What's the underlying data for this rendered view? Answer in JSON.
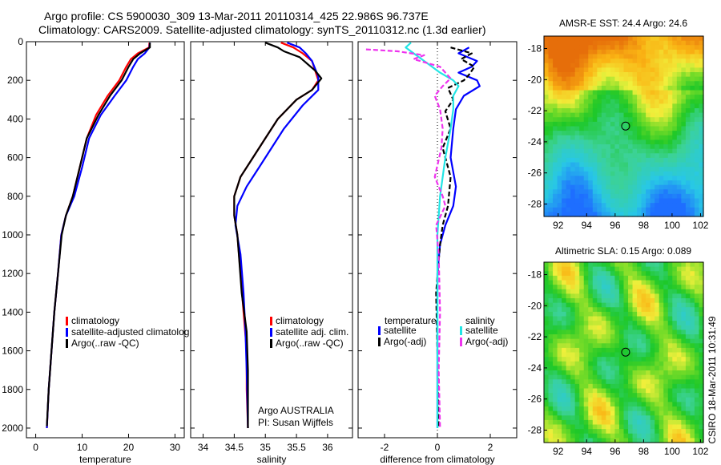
{
  "header": {
    "line1": "Argo profile: CS 5900030_309 13-Mar-2011 20110314_425 22.986S 96.737E",
    "line2": "Climatology: CARS2009. Satellite-adjusted climatology: synTS_20110312.nc (1.3d earlier)"
  },
  "side_label": "CSIRO 18-Mar-2011 10:31:49",
  "colors": {
    "climatology": "#ff0000",
    "satellite": "#0000ff",
    "argo": "#000000",
    "salinity_satellite": "#22e5e5",
    "salinity_argo": "#ee33ee"
  },
  "chart_data": [
    {
      "type": "line",
      "id": "temperature",
      "xlabel": "temperature",
      "ylabel": "",
      "xlim": [
        -2,
        32
      ],
      "ylim": [
        2050,
        0
      ],
      "xticks": [
        0,
        10,
        20,
        30
      ],
      "yticks": [
        0,
        200,
        400,
        600,
        800,
        1000,
        1200,
        1400,
        1600,
        1800,
        2000
      ],
      "legend": [
        "climatology",
        "satellite-adjusted climatology",
        "Argo(..raw -QC)"
      ],
      "legend_display": [
        "climatology",
        "satellite-adjusted climatolog",
        "Argo(..raw -QC)"
      ],
      "series": [
        {
          "name": "climatology",
          "color": "#ff0000",
          "points": [
            [
              24.5,
              5
            ],
            [
              24.4,
              30
            ],
            [
              22.0,
              60
            ],
            [
              20.5,
              90
            ],
            [
              19.5,
              130
            ],
            [
              18.0,
              200
            ],
            [
              15.5,
              280
            ],
            [
              13.0,
              380
            ],
            [
              11.0,
              500
            ],
            [
              9.5,
              650
            ],
            [
              8.0,
              800
            ],
            [
              6.5,
              900
            ],
            [
              5.5,
              1000
            ],
            [
              4.8,
              1200
            ],
            [
              4.0,
              1400
            ],
            [
              3.4,
              1600
            ],
            [
              2.8,
              1800
            ],
            [
              2.4,
              2000
            ]
          ]
        },
        {
          "name": "satellite-adjusted climatology",
          "color": "#0000ff",
          "points": [
            [
              24.6,
              5
            ],
            [
              24.5,
              30
            ],
            [
              23.5,
              60
            ],
            [
              22.0,
              90
            ],
            [
              21.0,
              130
            ],
            [
              19.5,
              200
            ],
            [
              17.0,
              280
            ],
            [
              14.0,
              380
            ],
            [
              11.5,
              500
            ],
            [
              10.0,
              650
            ],
            [
              8.3,
              800
            ],
            [
              6.5,
              900
            ],
            [
              5.5,
              1000
            ],
            [
              4.8,
              1200
            ],
            [
              4.0,
              1400
            ],
            [
              3.4,
              1600
            ],
            [
              2.8,
              1800
            ],
            [
              2.4,
              2000
            ]
          ]
        },
        {
          "name": "Argo(..raw -QC)",
          "color": "#000000",
          "points": [
            [
              24.6,
              5
            ],
            [
              24.6,
              30
            ],
            [
              22.5,
              60
            ],
            [
              21.0,
              90
            ],
            [
              20.0,
              130
            ],
            [
              18.5,
              200
            ],
            [
              16.0,
              280
            ],
            [
              13.5,
              380
            ],
            [
              11.0,
              500
            ],
            [
              9.5,
              650
            ],
            [
              8.0,
              800
            ],
            [
              6.5,
              900
            ],
            [
              5.6,
              1000
            ],
            [
              4.8,
              1200
            ],
            [
              4.0,
              1400
            ],
            [
              3.4,
              1600
            ],
            [
              2.8,
              1800
            ],
            [
              2.4,
              1990
            ]
          ]
        }
      ]
    },
    {
      "type": "line",
      "id": "salinity",
      "xlabel": "salinity",
      "xlim": [
        33.8,
        36.4
      ],
      "ylim": [
        2050,
        0
      ],
      "xticks": [
        34,
        34.5,
        35,
        35.5,
        36
      ],
      "xticklabels": [
        "34",
        "34.5",
        "35",
        "35.5",
        "36"
      ],
      "legend": [
        "climatology",
        "satellite adj. clim.",
        "Argo(..raw -QC)"
      ],
      "note_lines": [
        "Argo AUSTRALIA",
        "PI: Susan Wijffels"
      ],
      "series": [
        {
          "name": "climatology",
          "color": "#ff0000",
          "points": [
            [
              35.25,
              5
            ],
            [
              35.45,
              30
            ],
            [
              35.6,
              60
            ],
            [
              35.75,
              100
            ],
            [
              35.85,
              200
            ],
            [
              35.75,
              250
            ],
            [
              35.5,
              300
            ],
            [
              35.2,
              400
            ],
            [
              35.0,
              500
            ],
            [
              34.8,
              600
            ],
            [
              34.6,
              700
            ],
            [
              34.5,
              800
            ],
            [
              34.5,
              900
            ],
            [
              34.55,
              1000
            ],
            [
              34.6,
              1200
            ],
            [
              34.65,
              1400
            ],
            [
              34.7,
              1600
            ],
            [
              34.7,
              1800
            ],
            [
              34.72,
              2000
            ]
          ]
        },
        {
          "name": "satellite adj. clim.",
          "color": "#0000ff",
          "points": [
            [
              35.35,
              5
            ],
            [
              35.55,
              30
            ],
            [
              35.65,
              60
            ],
            [
              35.75,
              100
            ],
            [
              35.85,
              180
            ],
            [
              35.85,
              250
            ],
            [
              35.6,
              330
            ],
            [
              35.3,
              450
            ],
            [
              35.1,
              550
            ],
            [
              34.9,
              650
            ],
            [
              34.7,
              750
            ],
            [
              34.55,
              850
            ],
            [
              34.52,
              950
            ],
            [
              34.6,
              1100
            ],
            [
              34.65,
              1300
            ],
            [
              34.68,
              1500
            ],
            [
              34.7,
              1700
            ],
            [
              34.72,
              2000
            ]
          ]
        },
        {
          "name": "Argo(..raw -QC)",
          "color": "#000000",
          "points": [
            [
              35.0,
              5
            ],
            [
              35.2,
              30
            ],
            [
              35.3,
              50
            ],
            [
              35.55,
              80
            ],
            [
              35.8,
              150
            ],
            [
              35.9,
              190
            ],
            [
              35.75,
              250
            ],
            [
              35.5,
              300
            ],
            [
              35.2,
              400
            ],
            [
              35.0,
              500
            ],
            [
              34.8,
              600
            ],
            [
              34.6,
              700
            ],
            [
              34.5,
              800
            ],
            [
              34.5,
              900
            ],
            [
              34.55,
              1000
            ],
            [
              34.62,
              1300
            ],
            [
              34.7,
              1500
            ],
            [
              34.72,
              1700
            ],
            [
              34.72,
              2000
            ]
          ]
        }
      ]
    },
    {
      "type": "line",
      "id": "difference",
      "xlabel": "difference from climatology",
      "xlim": [
        -3,
        3
      ],
      "ylim": [
        2050,
        0
      ],
      "xticks": [
        -2,
        0,
        2
      ],
      "legend_temperature_title": "temperature",
      "legend_salinity_title": "salinity",
      "legend": [
        "satellite",
        "Argo(-adj)",
        "satellite",
        "Argo(-adj)"
      ],
      "series": [
        {
          "name": "temperature satellite",
          "color": "#0000ff",
          "points": [
            [
              1.2,
              30
            ],
            [
              0.8,
              60
            ],
            [
              1.5,
              100
            ],
            [
              1.3,
              130
            ],
            [
              0.8,
              160
            ],
            [
              1.5,
              200
            ],
            [
              1.6,
              230
            ],
            [
              1.0,
              280
            ],
            [
              0.7,
              350
            ],
            [
              0.6,
              450
            ],
            [
              0.5,
              600
            ],
            [
              0.7,
              750
            ],
            [
              0.6,
              850
            ],
            [
              0.3,
              950
            ],
            [
              0.1,
              1050
            ],
            [
              0,
              1200
            ],
            [
              0,
              1500
            ],
            [
              0,
              2000
            ]
          ]
        },
        {
          "name": "temperature Argo(-adj)",
          "color": "#000000",
          "points": [
            [
              0.5,
              30
            ],
            [
              1.3,
              60
            ],
            [
              0.9,
              90
            ],
            [
              1.4,
              130
            ],
            [
              1.2,
              170
            ],
            [
              1.0,
              200
            ],
            [
              0.4,
              240
            ],
            [
              0.6,
              300
            ],
            [
              0.3,
              360
            ],
            [
              0.5,
              450
            ],
            [
              0.2,
              550
            ],
            [
              0.5,
              700
            ],
            [
              0.4,
              850
            ],
            [
              0.2,
              950
            ],
            [
              0.1,
              1050
            ],
            [
              -0.05,
              1300
            ],
            [
              0,
              1600
            ],
            [
              0.05,
              2000
            ]
          ]
        },
        {
          "name": "salinity satellite",
          "color": "#22e5e5",
          "points": [
            [
              -1.0,
              5
            ],
            [
              -1.2,
              30
            ],
            [
              -0.8,
              70
            ],
            [
              -0.3,
              120
            ],
            [
              0.1,
              160
            ],
            [
              0.6,
              200
            ],
            [
              0.8,
              230
            ],
            [
              0.6,
              280
            ],
            [
              0.6,
              350
            ],
            [
              0.5,
              450
            ],
            [
              0.3,
              600
            ],
            [
              0.1,
              800
            ],
            [
              0.0,
              1000
            ],
            [
              0,
              1400
            ],
            [
              0,
              2000
            ]
          ]
        },
        {
          "name": "salinity Argo(-adj)",
          "color": "#ee33ee",
          "points": [
            [
              -2.7,
              40
            ],
            [
              -1.5,
              50
            ],
            [
              -0.5,
              70
            ],
            [
              -0.9,
              90
            ],
            [
              0.1,
              130
            ],
            [
              0.5,
              190
            ],
            [
              0.2,
              230
            ],
            [
              -0.1,
              280
            ],
            [
              0.1,
              350
            ],
            [
              0.2,
              450
            ],
            [
              0.15,
              550
            ],
            [
              -0.1,
              700
            ],
            [
              0.2,
              800
            ],
            [
              0.3,
              850
            ],
            [
              -0.05,
              950
            ],
            [
              0.05,
              1100
            ],
            [
              0.1,
              1400
            ],
            [
              0.05,
              1700
            ],
            [
              0.1,
              2000
            ]
          ]
        }
      ]
    },
    {
      "type": "heatmap",
      "id": "sst",
      "title": "AMSR-E SST: 24.4 Argo: 24.6",
      "xlim": [
        91,
        102.2
      ],
      "ylim": [
        -28.8,
        -17.2
      ],
      "xticks": [
        92,
        94,
        96,
        98,
        100,
        102
      ],
      "yticks": [
        -18,
        -20,
        -22,
        -24,
        -26,
        -28
      ],
      "argo_position": [
        96.737,
        -22.986
      ]
    },
    {
      "type": "heatmap",
      "id": "sla",
      "title": "Altimetric SLA: 0.15 Argo: 0.089",
      "xlim": [
        91,
        102.2
      ],
      "ylim": [
        -28.8,
        -17.2
      ],
      "xticks": [
        92,
        94,
        96,
        98,
        100,
        102
      ],
      "yticks": [
        -18,
        -20,
        -22,
        -24,
        -26,
        -28
      ],
      "argo_position": [
        96.737,
        -22.986
      ]
    }
  ]
}
